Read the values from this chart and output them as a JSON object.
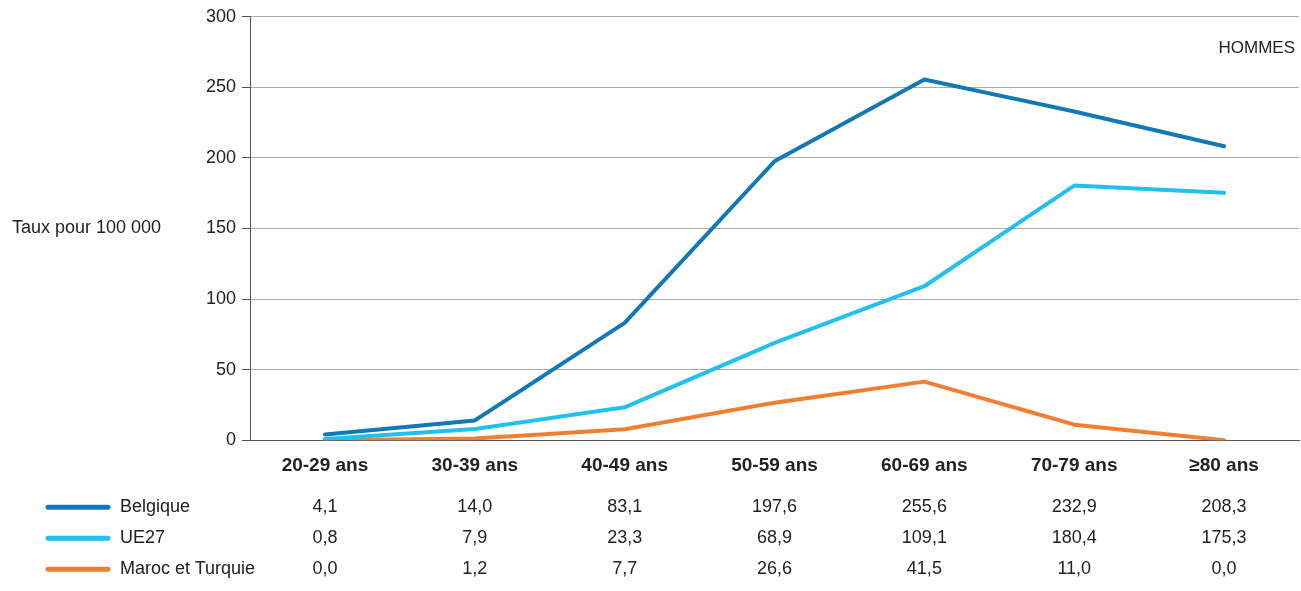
{
  "chart_data": {
    "type": "line",
    "ylabel": "Taux pour 100 000",
    "annotations": [
      "HOMMES"
    ],
    "categories": [
      "20-29 ans",
      "30-39 ans",
      "40-49 ans",
      "50-59 ans",
      "60-69 ans",
      "70-79 ans",
      "≥80 ans"
    ],
    "series": [
      {
        "name": "Belgique",
        "color": "#1379b5",
        "values": [
          4.1,
          14.0,
          83.1,
          197.6,
          255.6,
          232.9,
          208.3
        ],
        "value_labels": [
          "4,1",
          "14,0",
          "83,1",
          "197,6",
          "255,6",
          "232,9",
          "208,3"
        ]
      },
      {
        "name": "UE27",
        "color": "#22c0ee",
        "values": [
          0.8,
          7.9,
          23.3,
          68.9,
          109.1,
          180.4,
          175.3
        ],
        "value_labels": [
          "0,8",
          "7,9",
          "23,3",
          "68,9",
          "109,1",
          "180,4",
          "175,3"
        ]
      },
      {
        "name": "Maroc et Turquie",
        "color": "#f07f31",
        "values": [
          0.0,
          1.2,
          7.7,
          26.6,
          41.5,
          11.0,
          0.0
        ],
        "value_labels": [
          "0,0",
          "1,2",
          "7,7",
          "26,6",
          "41,5",
          "11,0",
          "0,0"
        ]
      }
    ],
    "ylim": [
      0,
      300
    ],
    "yticks": [
      0,
      50,
      100,
      150,
      200,
      250,
      300
    ],
    "grid": "y",
    "legend": "bottom left",
    "marker": "none",
    "line_style": "solid"
  }
}
